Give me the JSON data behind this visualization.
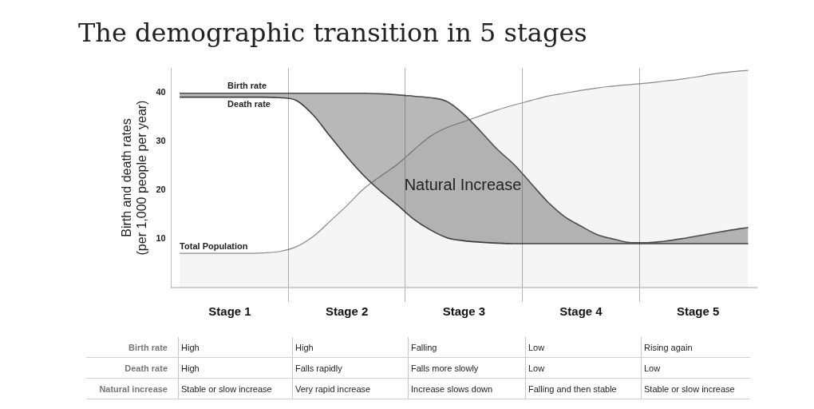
{
  "chart_data": {
    "type": "line",
    "title": "The demographic transition in 5 stages",
    "ylabel": "Birth and death rates\n(per 1,000 people per year)",
    "categories": [
      null,
      null,
      null,
      "Stage 1",
      null,
      null,
      null,
      null,
      null,
      null,
      "Stage 2",
      null,
      null,
      null,
      null,
      null,
      null,
      "Stage 3",
      null,
      null,
      null,
      null,
      null,
      null,
      "Stage 4",
      null,
      null,
      null,
      null,
      null,
      null,
      "Stage 5",
      null,
      null,
      null
    ],
    "series": [
      {
        "name": "Birth rate",
        "type": "area",
        "color": "#4d4d4d",
        "values": [
          39.8,
          39.8,
          39.8,
          39.8,
          39.8,
          39.8,
          39.8,
          39.8,
          39.8,
          39.8,
          39.8,
          39.8,
          39.7,
          39.5,
          39.2,
          38.9,
          38.1,
          35.5,
          32,
          28.3,
          25.2,
          21.4,
          17.6,
          14.6,
          12.6,
          10.8,
          9.9,
          9.2,
          9.2,
          9.5,
          10,
          10.6,
          11.2,
          11.8,
          12.3
        ]
      },
      {
        "name": "Death rate",
        "type": "line",
        "color": "#3a3a3a",
        "values": [
          39,
          39,
          39,
          39,
          39,
          39,
          38.9,
          38.3,
          35.3,
          31,
          26.8,
          23,
          19.8,
          17,
          14,
          11.8,
          10.2,
          9.6,
          9.3,
          9.1,
          9,
          9,
          9,
          9,
          9,
          9,
          9,
          9,
          9,
          9,
          9,
          9,
          9,
          9,
          9
        ]
      },
      {
        "name": "Total Population",
        "type": "area",
        "color": "#8a8a8a",
        "values": [
          7,
          7,
          7,
          7,
          7,
          7.1,
          7.4,
          8.4,
          10.5,
          13.6,
          16.8,
          20.2,
          22.8,
          25.2,
          28.2,
          31,
          32.8,
          34,
          35.2,
          36.4,
          37.4,
          38.3,
          39.2,
          39.8,
          40.4,
          40.9,
          41.3,
          41.6,
          41.9,
          42.3,
          42.7,
          43.2,
          43.8,
          44.2,
          44.5
        ]
      }
    ],
    "ylim": [
      0,
      45
    ],
    "yticks": [
      10,
      20,
      30,
      40
    ],
    "legend": false,
    "marker": "none",
    "line_style": "solid",
    "annotations": [
      "Natural Increase",
      "Birth rate",
      "High",
      "High",
      "Falling",
      "Low",
      "Rising again",
      "Death rate",
      "High",
      "Falls rapidly",
      "Falls more slowly",
      "Low",
      "Low",
      "Natural increase",
      "Stable or slow increase",
      "Very rapid increase",
      "Increase slows down",
      "Falling and then stable",
      "Stable or slow increase"
    ]
  }
}
